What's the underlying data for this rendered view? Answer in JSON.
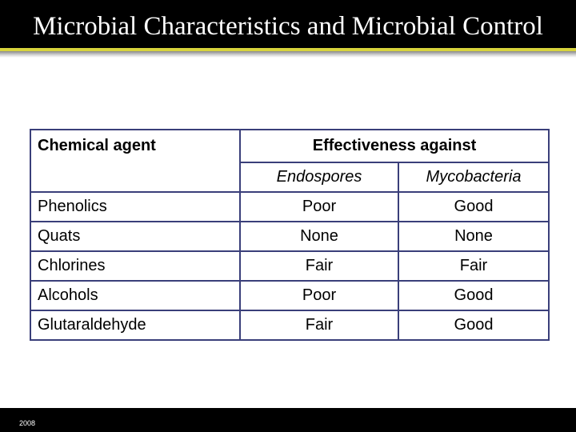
{
  "slide": {
    "title": "Microbial Characteristics and Microbial Control",
    "footer_year": "2008"
  },
  "table": {
    "col_agent": "Chemical agent",
    "col_effectiveness": "Effectiveness against",
    "sub_endospores": "Endospores",
    "sub_mycobacteria": "Mycobacteria",
    "rows": [
      {
        "agent": "Phenolics",
        "endospores": "Poor",
        "mycobacteria": "Good"
      },
      {
        "agent": "Quats",
        "endospores": "None",
        "mycobacteria": "None"
      },
      {
        "agent": "Chlorines",
        "endospores": "Fair",
        "mycobacteria": "Fair"
      },
      {
        "agent": "Alcohols",
        "endospores": "Poor",
        "mycobacteria": "Good"
      },
      {
        "agent": "Glutaraldehyde",
        "endospores": "Fair",
        "mycobacteria": "Good"
      }
    ]
  },
  "colors": {
    "title_bar": "#000000",
    "accent_rule": "#d8d43c",
    "table_border": "#3a3f7a"
  }
}
